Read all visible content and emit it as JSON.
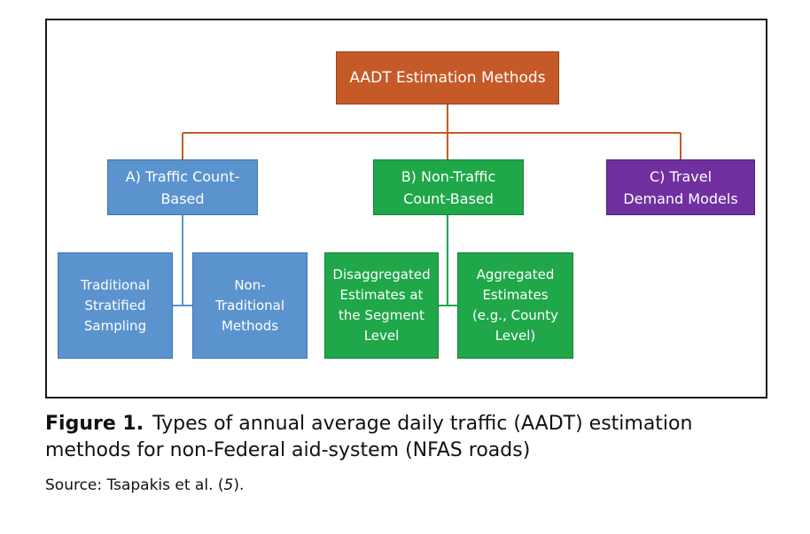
{
  "diagram": {
    "root": {
      "label": "AADT Estimation Methods"
    },
    "categories": [
      {
        "line1": "A) Traffic Count-",
        "line2": "Based"
      },
      {
        "line1": "B) Non-Traffic",
        "line2": "Count-Based"
      },
      {
        "line1": "C) Travel",
        "line2": "Demand Models"
      }
    ],
    "subcategories": [
      {
        "lines": [
          "Traditional",
          "Stratified",
          "Sampling"
        ]
      },
      {
        "lines": [
          "Non-",
          "Traditional",
          "Methods"
        ]
      },
      {
        "lines": [
          "Disaggregated",
          "Estimates at",
          "the Segment",
          "Level"
        ]
      },
      {
        "lines": [
          "Aggregated",
          "Estimates",
          "(e.g., County",
          "Level)"
        ]
      }
    ],
    "colors": {
      "root": "#c55a28",
      "traffic_count": "#5b93cf",
      "non_traffic_count": "#1fa74a",
      "travel_demand": "#7030a0",
      "root_connector": "#c55a28"
    }
  },
  "caption": {
    "label": "Figure 1.",
    "text": "Types of annual average daily traffic (AADT) estimation methods for non-Federal aid-system (NFAS roads)"
  },
  "source": {
    "prefix": "Source: Tsapakis et al. (",
    "ref": "5",
    "suffix": ")."
  }
}
